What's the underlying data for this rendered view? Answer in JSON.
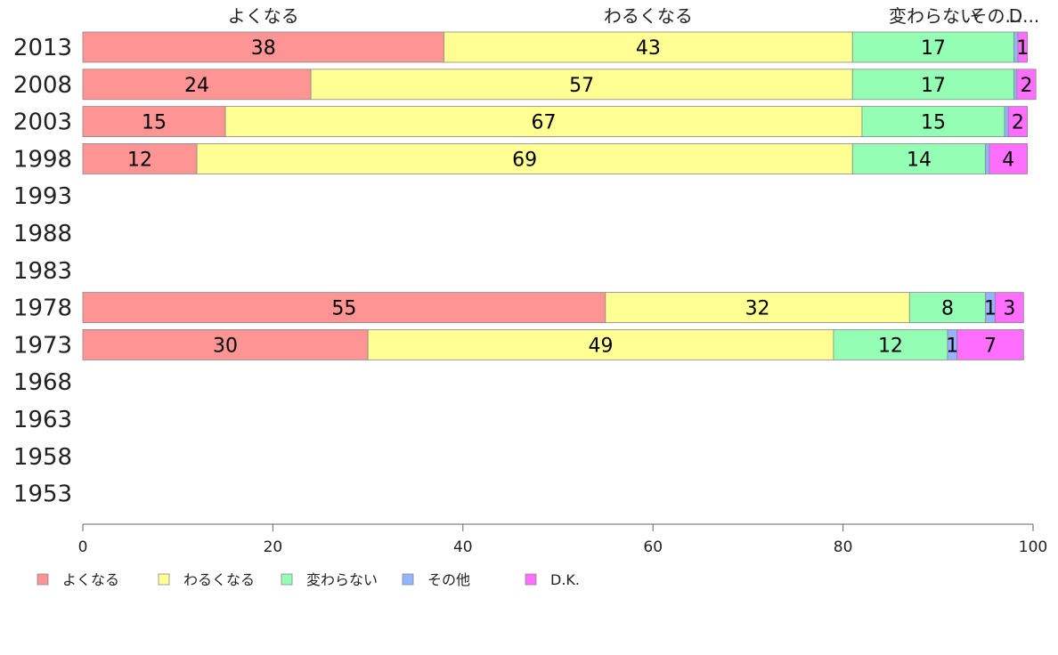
{
  "chart_data": {
    "type": "bar",
    "orientation": "horizontal",
    "stacked": true,
    "categories": [
      "2013",
      "2008",
      "2003",
      "1998",
      "1993",
      "1988",
      "1983",
      "1978",
      "1973",
      "1968",
      "1963",
      "1958",
      "1953"
    ],
    "series": [
      {
        "name": "よくなる",
        "color": "#ff9494",
        "values": [
          38,
          24,
          15,
          12,
          null,
          null,
          null,
          55,
          30,
          null,
          null,
          null,
          null
        ]
      },
      {
        "name": "わるくなる",
        "color": "#ffff94",
        "values": [
          43,
          57,
          67,
          69,
          null,
          null,
          null,
          32,
          49,
          null,
          null,
          null,
          null
        ]
      },
      {
        "name": "変わらない",
        "color": "#94ffb4",
        "values": [
          17,
          17,
          15,
          14,
          null,
          null,
          null,
          8,
          12,
          null,
          null,
          null,
          null
        ]
      },
      {
        "name": "その他",
        "color": "#94b4ff",
        "values": [
          0.4,
          0.3,
          0.4,
          0.4,
          null,
          null,
          null,
          1,
          1,
          null,
          null,
          null,
          null
        ]
      },
      {
        "name": "D.K.",
        "color": "#ff6eff",
        "values": [
          1,
          2,
          2,
          4,
          null,
          null,
          null,
          3,
          7,
          null,
          null,
          null,
          null
        ]
      }
    ],
    "segment_labels": [
      [
        "38",
        "43",
        "17",
        "",
        "1"
      ],
      [
        "24",
        "57",
        "17",
        "",
        "2"
      ],
      [
        "15",
        "67",
        "15",
        "",
        "2"
      ],
      [
        "12",
        "69",
        "14",
        "",
        "4"
      ],
      [],
      [],
      [],
      [
        "55",
        "32",
        "8",
        "1",
        "3"
      ],
      [
        "30",
        "49",
        "12",
        "1",
        "7"
      ],
      [],
      [],
      [],
      []
    ],
    "column_labels": [
      "よくなる",
      "わるくなる",
      "変わらない",
      "その...",
      "D..."
    ],
    "xlim": [
      0,
      100
    ],
    "xticks": [
      "0",
      "20",
      "40",
      "60",
      "80",
      "100"
    ],
    "legend_position": "bottom",
    "legend": [
      "よくなる",
      "わるくなる",
      "変わらない",
      "その他",
      "D.K."
    ]
  }
}
